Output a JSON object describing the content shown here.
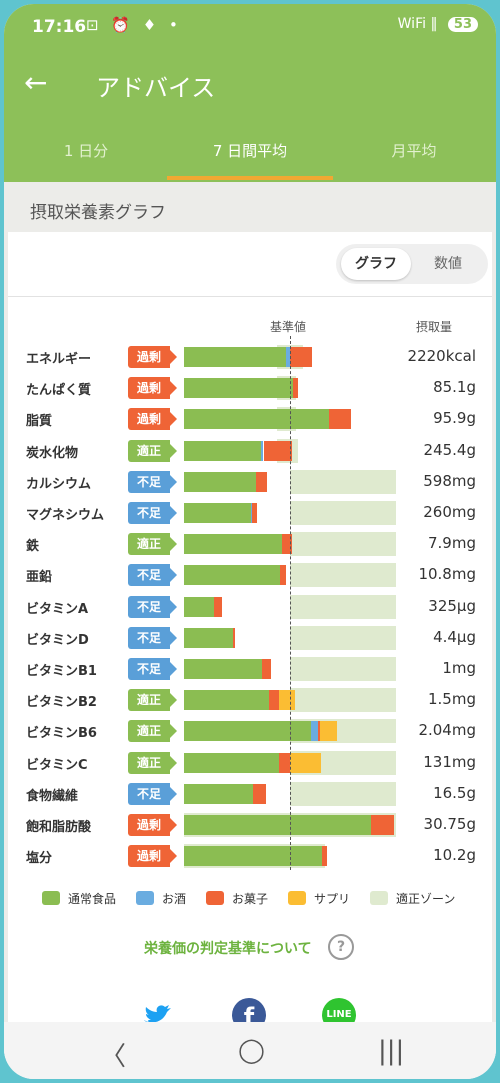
{
  "status_bar": {
    "time": "17:16",
    "icons": "⊡ ⏰ ♦ •",
    "signal": "WiFi ‖",
    "battery": "53"
  },
  "app_bar": {
    "title": "アドバイス"
  },
  "tabs": [
    {
      "label": "1 日分",
      "active": false
    },
    {
      "label": "7 日間平均",
      "active": true
    },
    {
      "label": "月平均",
      "active": false
    }
  ],
  "section_title": "摂取栄養素グラフ",
  "view_toggle": {
    "graph": "グラフ",
    "numeric": "数値"
  },
  "headers": {
    "reference": "基準値",
    "intake": "摂取量"
  },
  "badge_colors": {
    "過剰": "#ef6436",
    "適正": "#8bbd52",
    "不足": "#5a9fd8"
  },
  "colors": {
    "normal": "#8bbd52",
    "alcohol": "#6aace0",
    "sweets": "#ef6436",
    "supplement": "#fbbd33",
    "zone": "#dfeacf"
  },
  "chart_data": {
    "type": "bar",
    "stacked": true,
    "reference_percent": 100,
    "xlim": [
      0,
      200
    ],
    "series_names": [
      "通常食品",
      "お酒",
      "お菓子",
      "サプリ"
    ],
    "nutrients": [
      {
        "name": "エネルギー",
        "status": "過剰",
        "value": "2220kcal",
        "normal": 96,
        "alcohol": 4,
        "sweets": 21,
        "supplement": 0,
        "zone": [
          88,
          112
        ]
      },
      {
        "name": "たんぱく質",
        "status": "過剰",
        "value": "85.1g",
        "normal": 103,
        "alcohol": 0,
        "sweets": 5,
        "supplement": 0,
        "zone": [
          88,
          106
        ]
      },
      {
        "name": "脂質",
        "status": "過剰",
        "value": "95.9g",
        "normal": 137,
        "alcohol": 0,
        "sweets": 21,
        "supplement": 0,
        "zone": [
          88,
          106
        ]
      },
      {
        "name": "炭水化物",
        "status": "適正",
        "value": "245.4g",
        "normal": 73,
        "alcohol": 2,
        "sweets": 27,
        "supplement": 0,
        "zone": [
          88,
          108
        ]
      },
      {
        "name": "カルシウム",
        "status": "不足",
        "value": "598mg",
        "normal": 68,
        "alcohol": 0,
        "sweets": 10,
        "supplement": 0,
        "zone": [
          100,
          200
        ]
      },
      {
        "name": "マグネシウム",
        "status": "不足",
        "value": "260mg",
        "normal": 63,
        "alcohol": 1,
        "sweets": 5,
        "supplement": 0,
        "zone": [
          100,
          200
        ]
      },
      {
        "name": "鉄",
        "status": "適正",
        "value": "7.9mg",
        "normal": 92,
        "alcohol": 0,
        "sweets": 10,
        "supplement": 0,
        "zone": [
          100,
          200
        ]
      },
      {
        "name": "亜鉛",
        "status": "不足",
        "value": "10.8mg",
        "normal": 91,
        "alcohol": 0,
        "sweets": 5,
        "supplement": 0,
        "zone": [
          100,
          200
        ]
      },
      {
        "name": "ビタミンA",
        "status": "不足",
        "value": "325µg",
        "normal": 28,
        "alcohol": 0,
        "sweets": 8,
        "supplement": 0,
        "zone": [
          100,
          200
        ]
      },
      {
        "name": "ビタミンD",
        "status": "不足",
        "value": "4.4µg",
        "normal": 46,
        "alcohol": 0,
        "sweets": 2,
        "supplement": 0,
        "zone": [
          100,
          200
        ]
      },
      {
        "name": "ビタミンB1",
        "status": "不足",
        "value": "1mg",
        "normal": 74,
        "alcohol": 0,
        "sweets": 8,
        "supplement": 0,
        "zone": [
          100,
          200
        ]
      },
      {
        "name": "ビタミンB2",
        "status": "適正",
        "value": "1.5mg",
        "normal": 80,
        "alcohol": 0,
        "sweets": 10,
        "supplement": 15,
        "zone": [
          100,
          200
        ]
      },
      {
        "name": "ビタミンB6",
        "status": "適正",
        "value": "2.04mg",
        "normal": 120,
        "alcohol": 6,
        "sweets": 2,
        "supplement": 16,
        "zone": [
          100,
          200
        ]
      },
      {
        "name": "ビタミンC",
        "status": "適正",
        "value": "131mg",
        "normal": 90,
        "alcohol": 0,
        "sweets": 10,
        "supplement": 29,
        "zone": [
          100,
          200
        ]
      },
      {
        "name": "食物繊維",
        "status": "不足",
        "value": "16.5g",
        "normal": 65,
        "alcohol": 0,
        "sweets": 12,
        "supplement": 0,
        "zone": [
          100,
          200
        ]
      },
      {
        "name": "飽和脂肪酸",
        "status": "過剰",
        "value": "30.75g",
        "normal": 176,
        "alcohol": 0,
        "sweets": 22,
        "supplement": 0,
        "zone": [
          0,
          200
        ]
      },
      {
        "name": "塩分",
        "status": "過剰",
        "value": "10.2g",
        "normal": 130,
        "alcohol": 0,
        "sweets": 5,
        "supplement": 0,
        "zone": [
          0,
          133
        ]
      }
    ]
  },
  "legend": [
    {
      "label": "通常食品",
      "color": "#8bbd52"
    },
    {
      "label": "お酒",
      "color": "#6aace0"
    },
    {
      "label": "お菓子",
      "color": "#ef6436"
    },
    {
      "label": "サプリ",
      "color": "#fbbd33"
    },
    {
      "label": "適正ゾーン",
      "color": "#dfeacf"
    }
  ],
  "criteria_link": "栄養価の判定基準について",
  "share": [
    "twitter-icon",
    "facebook-icon",
    "line-icon"
  ],
  "share_line_label": "LINE",
  "share_facebook_label": "f"
}
